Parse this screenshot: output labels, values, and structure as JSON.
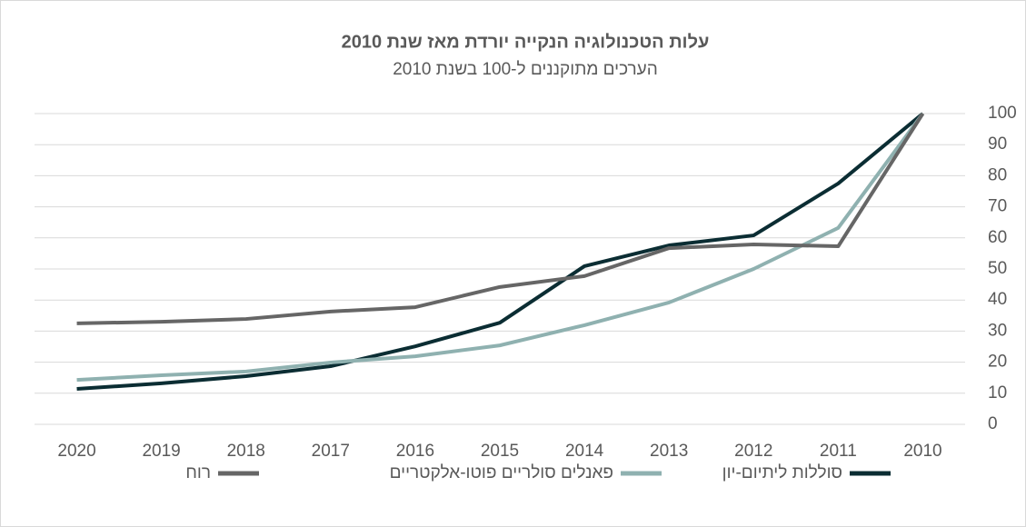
{
  "chart_data": {
    "type": "line",
    "title": "עלות הטכנולוגיה הנקייה יורדת מאז שנת 2010",
    "subtitle": "הערכים מתוקננים ל-100 בשנת 2010",
    "categories": [
      "2010",
      "2011",
      "2012",
      "2013",
      "2014",
      "2015",
      "2016",
      "2017",
      "2018",
      "2019",
      "2020"
    ],
    "x_reversed": true,
    "y_axis_side": "right",
    "ylim": [
      0,
      100
    ],
    "yticks": [
      0,
      10,
      20,
      30,
      40,
      50,
      60,
      70,
      80,
      90,
      100
    ],
    "grid": true,
    "legend": "bottom",
    "series": [
      {
        "name": "סוללות ליתיום-יון",
        "color": "#0b2d33",
        "values": [
          100,
          77.5,
          60.8,
          57.6,
          50.9,
          32.7,
          25.1,
          18.7,
          15.5,
          13.2,
          11.4
        ]
      },
      {
        "name": "פאנלים סולריים פוטו-אלקטריים",
        "color": "#8fb1b0",
        "values": [
          100,
          63.2,
          50,
          39.2,
          31.9,
          25.4,
          21.9,
          19.9,
          17,
          15.8,
          14.3
        ]
      },
      {
        "name": "רוח",
        "color": "#666666",
        "values": [
          100,
          57.3,
          57.9,
          56.7,
          47.7,
          44.2,
          37.7,
          36.3,
          33.9,
          33,
          32.5
        ]
      }
    ]
  }
}
